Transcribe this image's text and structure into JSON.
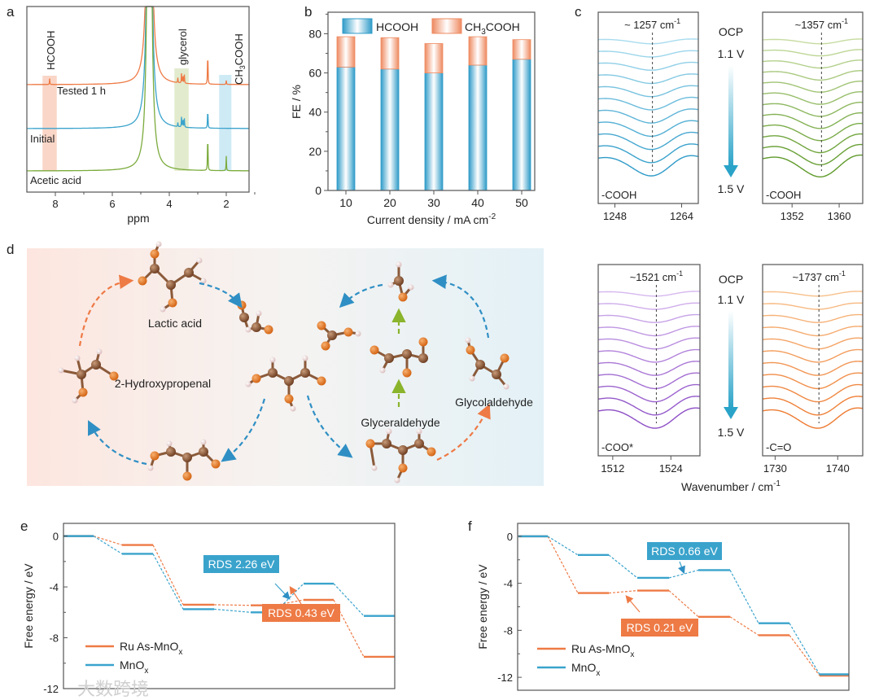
{
  "panels": {
    "a": "a",
    "b": "b",
    "c": "c",
    "d": "d",
    "e": "e",
    "f": "f"
  },
  "colors": {
    "orange": "#ee7a45",
    "blue": "#3aa3cc",
    "green": "#7bab3c",
    "purple": "#a06ad0",
    "lightorange": "#f4a060"
  },
  "chart_data": [
    {
      "id": "a",
      "type": "line",
      "title": "",
      "xlabel": "ppm",
      "xlim": [
        9.0,
        1.2
      ],
      "xticks": [
        8,
        6,
        4,
        2
      ],
      "series": [
        {
          "name": "Tested 1 h",
          "color": "#ee7a45",
          "peaks": [
            [
              8.2,
              0.12
            ],
            [
              4.7,
              1.0
            ],
            [
              3.7,
              0.1
            ],
            [
              3.57,
              0.2
            ],
            [
              3.52,
              0.2
            ],
            [
              3.47,
              0.18
            ],
            [
              2.65,
              0.85
            ],
            [
              2.0,
              0.08
            ]
          ]
        },
        {
          "name": "Initial",
          "color": "#3aa3cc",
          "peaks": [
            [
              4.7,
              1.0
            ],
            [
              3.7,
              0.1
            ],
            [
              3.57,
              0.25
            ],
            [
              3.52,
              0.25
            ],
            [
              3.47,
              0.22
            ],
            [
              2.65,
              0.6
            ]
          ]
        },
        {
          "name": "Acetic acid",
          "color": "#7bab3c",
          "peaks": [
            [
              4.7,
              1.0
            ],
            [
              2.65,
              0.95
            ],
            [
              2.0,
              0.3
            ]
          ]
        }
      ],
      "regions": [
        {
          "label": "HCOOH",
          "range": [
            8.45,
            7.95
          ],
          "color": "#f8cfbd"
        },
        {
          "label": "glycerol",
          "range": [
            3.82,
            3.32
          ],
          "color": "#dde8c4"
        },
        {
          "label": "CH3COOH",
          "range": [
            2.25,
            1.82
          ],
          "color": "#c6e6f3"
        }
      ]
    },
    {
      "id": "b",
      "type": "bar",
      "stacked": true,
      "xlabel": "Current density / mA cm",
      "xlabel_sup": "-2",
      "ylabel": "FE / %",
      "categories": [
        "10",
        "20",
        "30",
        "40",
        "50"
      ],
      "ylim": [
        0,
        91
      ],
      "yticks": [
        0,
        20,
        40,
        60,
        80
      ],
      "series": [
        {
          "name": "HCOOH",
          "values": [
            63,
            62,
            60,
            64,
            67
          ],
          "color": "#3aa3cc"
        },
        {
          "name": "CH3COOH",
          "values": [
            15.5,
            16,
            15,
            14.5,
            10
          ],
          "color": "#ef8a62"
        }
      ],
      "legend": "top"
    },
    {
      "id": "c",
      "type": "line",
      "xlabel": "Wavenumber / cm",
      "xlabel_sup": "-1",
      "potential_start": "OCP",
      "potential_mid": "1.1 V",
      "potential_end": "1.5 V",
      "subplots": [
        {
          "peak_label": "~ 1257 cm",
          "group": "-COOH",
          "xlim": [
            1244,
            1268
          ],
          "peak": 1257,
          "xticks": [
            "1248",
            "1264"
          ],
          "tickvals": [
            1248,
            1264
          ],
          "color_light": "#a8dcef",
          "color_dark": "#2f9bc8",
          "curves": 11
        },
        {
          "peak_label": "~1357 cm",
          "group": "-COOH",
          "xlim": [
            1347,
            1364
          ],
          "peak": 1357,
          "xticks": [
            "1352",
            "1360"
          ],
          "tickvals": [
            1352,
            1360
          ],
          "color_light": "#c6dca0",
          "color_dark": "#5f9a2a",
          "curves": 12
        },
        {
          "peak_label": "~1521 cm",
          "group": "-COO*",
          "xlim": [
            1509,
            1530
          ],
          "peak": 1521,
          "xticks": [
            "1512",
            "1524"
          ],
          "tickvals": [
            1512,
            1524
          ],
          "color_light": "#d6b8ef",
          "color_dark": "#8d4ec6",
          "curves": 11
        },
        {
          "peak_label": "~1737 cm",
          "group": "-C=O",
          "xlim": [
            1728,
            1744
          ],
          "peak": 1737,
          "xticks": [
            "1730",
            "1740"
          ],
          "tickvals": [
            1730,
            1740
          ],
          "color_light": "#f8c08a",
          "color_dark": "#ee7a30",
          "curves": 11
        }
      ],
      "sup": "-1"
    },
    {
      "id": "e",
      "type": "line",
      "ylabel": "Free energy / eV",
      "ylim": [
        -12,
        1
      ],
      "yticks": [
        0,
        -4,
        -8,
        -12
      ],
      "series": [
        {
          "name": "Ru As-MnO",
          "sub": "x",
          "color": "#ee7a45",
          "values": [
            0,
            -0.7,
            -5.4,
            -5.45,
            -5.02,
            -9.5
          ]
        },
        {
          "name": "MnO",
          "sub": "x",
          "color": "#3aa3cc",
          "values": [
            0,
            -1.4,
            -5.75,
            -6.0,
            -3.74,
            -6.28
          ]
        }
      ],
      "annotations": [
        {
          "text": "RDS 2.26 eV",
          "series": "MnO"
        },
        {
          "text": "RDS 0.43 eV",
          "series": "Ru As-MnO"
        }
      ]
    },
    {
      "id": "f",
      "type": "line",
      "ylabel": "Free energy / eV",
      "ylim": [
        -13.1,
        1.1
      ],
      "yticks": [
        0,
        -4,
        -8,
        -12
      ],
      "series": [
        {
          "name": "Ru As-MnO",
          "sub": "x",
          "color": "#ee7a45",
          "values": [
            0,
            -4.83,
            -4.62,
            -6.85,
            -8.42,
            -11.86
          ]
        },
        {
          "name": "MnO",
          "sub": "x",
          "color": "#3aa3cc",
          "values": [
            0,
            -1.59,
            -3.54,
            -2.88,
            -7.4,
            -11.75
          ]
        }
      ],
      "annotations": [
        {
          "text": "RDS 0.66 eV",
          "series": "MnO"
        },
        {
          "text": "RDS 0.21 eV",
          "series": "Ru As-MnO"
        }
      ]
    }
  ],
  "scheme": {
    "lactic_acid": "Lactic acid",
    "hydroxypropenal": "2-Hydroxypropenal",
    "glyceraldehyde": "Glyceraldehyde",
    "glycolaldehyde": "Glycolaldehyde"
  },
  "watermark": "大数跨境"
}
